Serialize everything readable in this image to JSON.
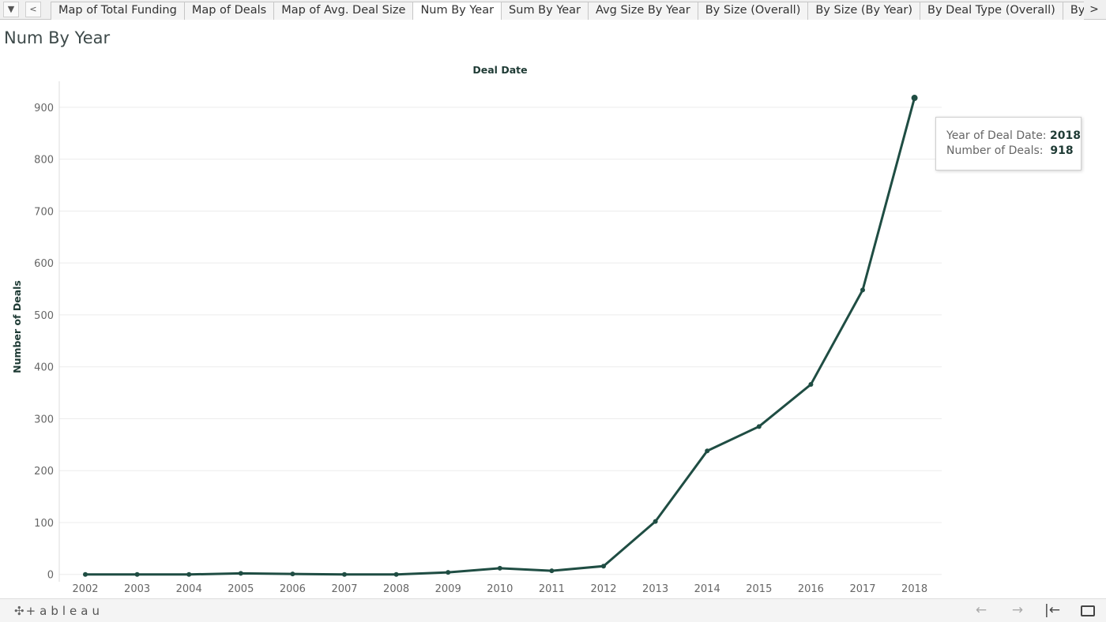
{
  "tabbar": {
    "dropdown_icon": "▼",
    "prev_icon": "<",
    "next_icon": ">",
    "tabs": [
      {
        "label": "Map of Total Funding"
      },
      {
        "label": "Map of Deals"
      },
      {
        "label": "Map of Avg. Deal Size"
      },
      {
        "label": "Num By Year",
        "active": true
      },
      {
        "label": "Sum By Year"
      },
      {
        "label": "Avg Size By Year"
      },
      {
        "label": "By Size (Overall)"
      },
      {
        "label": "By Size (By Year)"
      },
      {
        "label": "By Deal Type (Overall)"
      },
      {
        "label": "By Deal Type (B"
      }
    ]
  },
  "page_title": "Num By Year",
  "chart_data": {
    "type": "line",
    "title": "",
    "column_header": "Deal Date",
    "xlabel": "",
    "ylabel": "Number of Deals",
    "categories": [
      "2002",
      "2003",
      "2004",
      "2005",
      "2006",
      "2007",
      "2008",
      "2009",
      "2010",
      "2011",
      "2012",
      "2013",
      "2014",
      "2015",
      "2016",
      "2017",
      "2018"
    ],
    "series": [
      {
        "values": [
          0,
          0,
          0,
          2,
          1,
          0,
          0,
          4,
          12,
          7,
          16,
          102,
          238,
          285,
          366,
          548,
          918
        ]
      }
    ],
    "yticks": [
      0,
      100,
      200,
      300,
      400,
      500,
      600,
      700,
      800,
      900
    ],
    "ylim": [
      -8,
      950
    ],
    "grid": true,
    "line_color": "#1f4d43"
  },
  "tooltip": {
    "year_label": "Year of Deal Date:",
    "year_value": "2018",
    "deals_label": "Number of Deals:",
    "deals_value": "918"
  },
  "bottombar": {
    "brand_icon": "✣",
    "brand": "+ableau",
    "undo_icon": "←",
    "redo_icon": "→",
    "revert_icon": "|←"
  }
}
